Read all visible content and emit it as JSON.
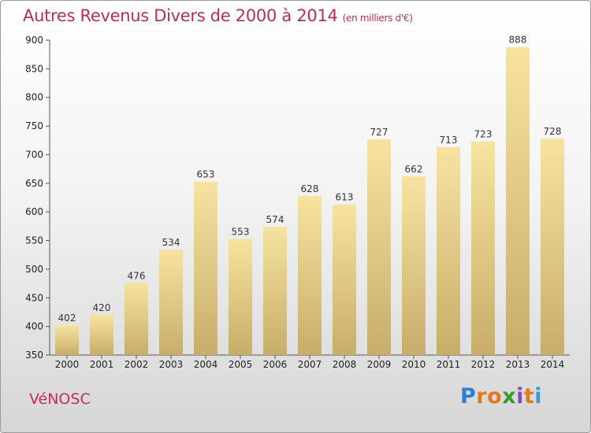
{
  "chart_data": {
    "type": "bar",
    "title": "Autres Revenus Divers de 2000 à 2014",
    "subtitle": "(en milliers d'€)",
    "categories": [
      "2000",
      "2001",
      "2002",
      "2003",
      "2004",
      "2005",
      "2006",
      "2007",
      "2008",
      "2009",
      "2010",
      "2011",
      "2012",
      "2013",
      "2014"
    ],
    "values": [
      402,
      420,
      476,
      534,
      653,
      553,
      574,
      628,
      613,
      727,
      662,
      713,
      723,
      888,
      728
    ],
    "xlabel": "",
    "ylabel": "",
    "ylim": [
      350,
      900
    ],
    "yticks": [
      350,
      400,
      450,
      500,
      550,
      600,
      650,
      700,
      750,
      800,
      850,
      900
    ],
    "grid": false,
    "data_labels": true,
    "bar_color_top": "#f7e3a0",
    "bar_color_bottom": "#c8ad6a"
  },
  "footer": {
    "commune": "VéNOSC",
    "logo": {
      "letters": [
        "P",
        "r",
        "o",
        "x",
        "i",
        "t",
        "i"
      ],
      "colors": [
        "#2a7fd0",
        "#e07a1c",
        "#e07a1c",
        "#3a9a2a",
        "#8a4ab0",
        "#e07a1c",
        "#3a9ad8"
      ]
    }
  }
}
